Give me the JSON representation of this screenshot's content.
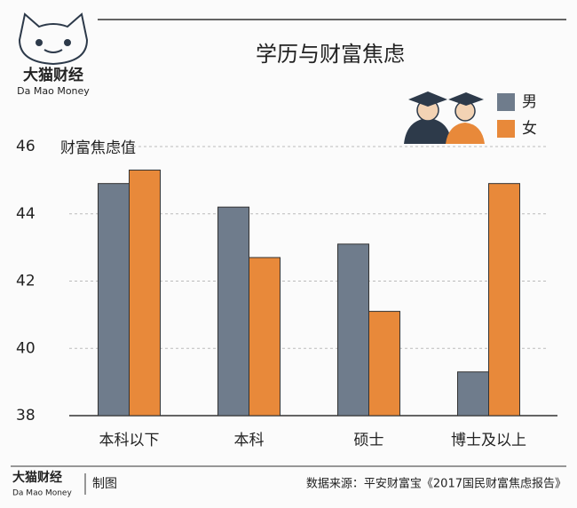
{
  "header": {
    "logo_cn": "大猫财经",
    "logo_en": "Da Mao Money"
  },
  "chart_data": {
    "type": "bar",
    "title": "学历与财富焦虑",
    "y_label": "财富焦虑值",
    "categories": [
      "本科以下",
      "本科",
      "硕士",
      "博士及以上"
    ],
    "series": [
      {
        "name": "男",
        "color": "#6f7c8c",
        "values": [
          44.9,
          44.2,
          43.1,
          39.3
        ]
      },
      {
        "name": "女",
        "color": "#e8893a",
        "values": [
          45.3,
          42.7,
          41.1,
          44.9
        ]
      }
    ],
    "ylim": [
      38,
      46
    ],
    "yticks": [
      38,
      40,
      42,
      44,
      46
    ],
    "grid": true
  },
  "footer": {
    "logo_cn": "大猫财经",
    "logo_en": "Da Mao Money",
    "credit": "制图",
    "source": "数据来源：平安财富宝《2017国民财富焦虑报告》"
  }
}
